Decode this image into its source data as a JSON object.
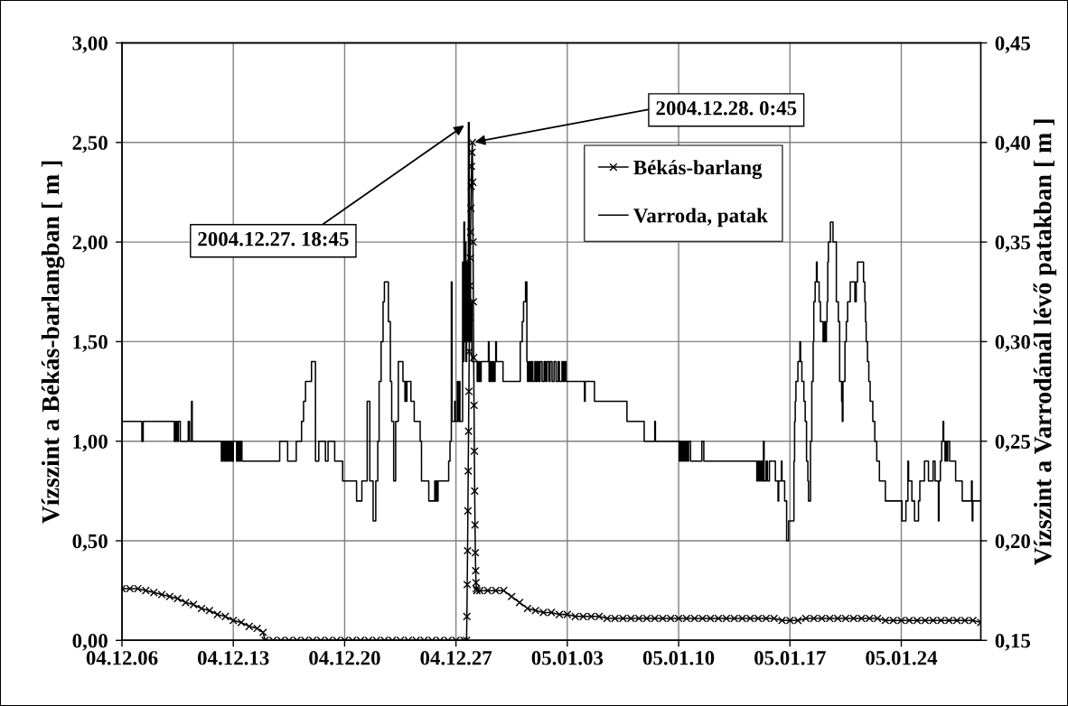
{
  "chart_data": {
    "type": "line",
    "ylabel": "Vízszint a Békás-barlangban [ m ]",
    "y2label": "Vízszint a Varrodánál lévő patakban [ m ]",
    "xlim": [
      "2004-12-06",
      "2005-01-29"
    ],
    "xticks": [
      {
        "value": "2004-12-06",
        "label": "04.12.06"
      },
      {
        "value": "2004-12-13",
        "label": "04.12.13"
      },
      {
        "value": "2004-12-20",
        "label": "04.12.20"
      },
      {
        "value": "2004-12-27",
        "label": "04.12.27"
      },
      {
        "value": "2005-01-03",
        "label": "05.01.03"
      },
      {
        "value": "2005-01-10",
        "label": "05.01.10"
      },
      {
        "value": "2005-01-17",
        "label": "05.01.17"
      },
      {
        "value": "2005-01-24",
        "label": "05.01.24"
      }
    ],
    "ylim": [
      0,
      3
    ],
    "yticks": [
      {
        "value": 0,
        "label": "0,00"
      },
      {
        "value": 0.5,
        "label": "0,50"
      },
      {
        "value": 1,
        "label": "1,00"
      },
      {
        "value": 1.5,
        "label": "1,50"
      },
      {
        "value": 2,
        "label": "2,00"
      },
      {
        "value": 2.5,
        "label": "2,50"
      },
      {
        "value": 3,
        "label": "3,00"
      }
    ],
    "y2lim": [
      0.15,
      0.45
    ],
    "y2ticks": [
      {
        "value": 0.15,
        "label": "0,15"
      },
      {
        "value": 0.2,
        "label": "0,20"
      },
      {
        "value": 0.25,
        "label": "0,25"
      },
      {
        "value": 0.3,
        "label": "0,30"
      },
      {
        "value": 0.35,
        "label": "0,35"
      },
      {
        "value": 0.4,
        "label": "0,40"
      },
      {
        "value": 0.45,
        "label": "0,45"
      }
    ],
    "grid": true,
    "legend": "top",
    "annotations": [
      {
        "text": "2004.12.27. 18:45",
        "x": "2004-12-27T18:45",
        "y": 2.6
      },
      {
        "text": "2004.12.28. 0:45",
        "x": "2004-12-28T00:45",
        "y": 2.5
      }
    ],
    "series": [
      {
        "name": "Békás-barlang",
        "color": "#000000",
        "marker": "cross",
        "x": [
          "2004-12-06T00:00",
          "2004-12-06T12:00",
          "2004-12-07T00:00",
          "2004-12-07T12:00",
          "2004-12-08T00:00",
          "2004-12-08T12:00",
          "2004-12-09T00:00",
          "2004-12-09T12:00",
          "2004-12-10T00:00",
          "2004-12-10T12:00",
          "2004-12-11T00:00",
          "2004-12-11T12:00",
          "2004-12-12T00:00",
          "2004-12-12T12:00",
          "2004-12-13T00:00",
          "2004-12-13T12:00",
          "2004-12-14T00:00",
          "2004-12-14T12:00",
          "2004-12-14T21:00",
          "2004-12-15T00:00",
          "2004-12-15T12:00",
          "2004-12-16T00:00",
          "2004-12-16T12:00",
          "2004-12-17T00:00",
          "2004-12-17T12:00",
          "2004-12-18T00:00",
          "2004-12-18T12:00",
          "2004-12-19T00:00",
          "2004-12-19T12:00",
          "2004-12-20T00:00",
          "2004-12-20T12:00",
          "2004-12-21T00:00",
          "2004-12-21T12:00",
          "2004-12-22T00:00",
          "2004-12-22T12:00",
          "2004-12-23T00:00",
          "2004-12-23T12:00",
          "2004-12-24T00:00",
          "2004-12-24T12:00",
          "2004-12-25T00:00",
          "2004-12-25T12:00",
          "2004-12-26T00:00",
          "2004-12-26T12:00",
          "2004-12-27T00:00",
          "2004-12-27T12:00",
          "2004-12-27T16:00",
          "2004-12-27T16:30",
          "2004-12-27T17:00",
          "2004-12-27T17:30",
          "2004-12-27T18:00",
          "2004-12-27T18:30",
          "2004-12-27T19:00",
          "2004-12-27T19:30",
          "2004-12-27T20:00",
          "2004-12-27T20:30",
          "2004-12-27T21:00",
          "2004-12-27T21:30",
          "2004-12-27T22:00",
          "2004-12-27T22:30",
          "2004-12-27T23:00",
          "2004-12-27T23:30",
          "2004-12-28T00:00",
          "2004-12-28T00:45",
          "2004-12-28T01:15",
          "2004-12-28T01:45",
          "2004-12-28T02:15",
          "2004-12-28T02:45",
          "2004-12-28T03:15",
          "2004-12-28T03:45",
          "2004-12-28T04:15",
          "2004-12-28T04:45",
          "2004-12-28T05:15",
          "2004-12-28T05:45",
          "2004-12-28T06:15",
          "2004-12-28T06:45",
          "2004-12-28T07:30",
          "2004-12-28T12:00",
          "2004-12-29T00:00",
          "2004-12-29T12:00",
          "2004-12-30T00:00",
          "2004-12-30T12:00",
          "2004-12-31T00:00",
          "2004-12-31T12:00",
          "2005-01-01T00:00",
          "2005-01-01T12:00",
          "2005-01-02T00:00",
          "2005-01-02T12:00",
          "2005-01-03T00:00",
          "2005-01-03T12:00",
          "2005-01-04T00:00",
          "2005-01-04T12:00",
          "2005-01-05T00:00",
          "2005-01-05T12:00",
          "2005-01-06T00:00",
          "2005-01-06T12:00",
          "2005-01-07T00:00",
          "2005-01-07T12:00",
          "2005-01-08T00:00",
          "2005-01-08T12:00",
          "2005-01-09T00:00",
          "2005-01-09T12:00",
          "2005-01-10T00:00",
          "2005-01-10T12:00",
          "2005-01-11T00:00",
          "2005-01-11T12:00",
          "2005-01-12T00:00",
          "2005-01-12T12:00",
          "2005-01-13T00:00",
          "2005-01-13T12:00",
          "2005-01-14T00:00",
          "2005-01-14T12:00",
          "2005-01-15T00:00",
          "2005-01-15T12:00",
          "2005-01-16T00:00",
          "2005-01-16T12:00",
          "2005-01-17T00:00",
          "2005-01-17T12:00",
          "2005-01-18T00:00",
          "2005-01-18T12:00",
          "2005-01-19T00:00",
          "2005-01-19T12:00",
          "2005-01-20T00:00",
          "2005-01-20T12:00",
          "2005-01-21T00:00",
          "2005-01-21T12:00",
          "2005-01-22T00:00",
          "2005-01-22T12:00",
          "2005-01-23T00:00",
          "2005-01-23T12:00",
          "2005-01-24T00:00",
          "2005-01-24T12:00",
          "2005-01-25T00:00",
          "2005-01-25T12:00",
          "2005-01-26T00:00",
          "2005-01-26T12:00",
          "2005-01-27T00:00",
          "2005-01-27T12:00",
          "2005-01-28T00:00",
          "2005-01-28T12:00",
          "2005-01-29T00:00"
        ],
        "values": [
          0.26,
          0.26,
          0.26,
          0.25,
          0.24,
          0.23,
          0.22,
          0.21,
          0.19,
          0.18,
          0.16,
          0.15,
          0.13,
          0.12,
          0.1,
          0.09,
          0.07,
          0.06,
          0.04,
          0,
          0,
          0,
          0,
          0,
          0,
          0,
          0,
          0,
          0,
          0,
          0,
          0,
          0,
          0,
          0,
          0,
          0,
          0,
          0,
          0,
          0,
          0,
          0,
          0,
          0,
          0,
          0.12,
          0.28,
          0.45,
          0.65,
          0.85,
          1.05,
          1.25,
          1.45,
          1.62,
          1.78,
          1.92,
          2.05,
          2.17,
          2.28,
          2.38,
          2.45,
          2.5,
          2.3,
          2.0,
          1.7,
          1.42,
          1.18,
          0.95,
          0.75,
          0.58,
          0.44,
          0.35,
          0.29,
          0.26,
          0.25,
          0.25,
          0.25,
          0.25,
          0.25,
          0.22,
          0.19,
          0.16,
          0.15,
          0.14,
          0.14,
          0.13,
          0.13,
          0.12,
          0.12,
          0.12,
          0.12,
          0.11,
          0.11,
          0.11,
          0.11,
          0.11,
          0.11,
          0.11,
          0.11,
          0.11,
          0.11,
          0.11,
          0.11,
          0.11,
          0.11,
          0.11,
          0.11,
          0.11,
          0.11,
          0.11,
          0.11,
          0.11,
          0.11,
          0.1,
          0.1,
          0.1,
          0.11,
          0.11,
          0.11,
          0.11,
          0.11,
          0.11,
          0.11,
          0.11,
          0.11,
          0.11,
          0.1,
          0.1,
          0.1,
          0.1,
          0.1,
          0.1,
          0.1,
          0.1,
          0.1,
          0.1,
          0.1,
          0.1,
          0.09
        ]
      },
      {
        "name": "Varroda, patak",
        "color": "#000000",
        "type": "step",
        "axis": "y2",
        "x": [
          "2004-12-06T00:00",
          "2004-12-07T06:00",
          "2004-12-07T08:00",
          "2004-12-09T07:00",
          "2004-12-09T09:00",
          "2004-12-09T11:00",
          "2004-12-09T13:00",
          "2004-12-09T16:00",
          "2004-12-10T04:00",
          "2004-12-10T06:00",
          "2004-12-10T09:00",
          "2004-12-10T10:00",
          "2004-12-12T06:00",
          "2004-12-12T08:00",
          "2004-12-12T10:00",
          "2004-12-12T12:00",
          "2004-12-12T14:00",
          "2004-12-12T16:00",
          "2004-12-12T18:00",
          "2004-12-12T20:00",
          "2004-12-12T22:00",
          "2004-12-13T00:00",
          "2004-12-13T05:00",
          "2004-12-13T07:00",
          "2004-12-13T09:00",
          "2004-12-13T11:00",
          "2004-12-13T13:00",
          "2004-12-15T22:00",
          "2004-12-16T10:00",
          "2004-12-16T23:00",
          "2004-12-17T07:00",
          "2004-12-17T10:00",
          "2004-12-17T13:00",
          "2004-12-17T22:00",
          "2004-12-18T04:00",
          "2004-12-18T09:00",
          "2004-12-18T19:00",
          "2004-12-18T23:00",
          "2004-12-19T09:00",
          "2004-12-19T21:00",
          "2004-12-20T18:00",
          "2004-12-21T02:00",
          "2004-12-21T10:00",
          "2004-12-21T14:00",
          "2004-12-21T19:00",
          "2004-12-21T23:00",
          "2004-12-22T02:00",
          "2004-12-22T04:00",
          "2004-12-22T07:00",
          "2004-12-22T10:00",
          "2004-12-22T12:00",
          "2004-12-22T18:00",
          "2004-12-22T21:00",
          "2004-12-22T23:00",
          "2004-12-23T02:00",
          "2004-12-23T05:00",
          "2004-12-23T09:00",
          "2004-12-23T16:00",
          "2004-12-23T19:00",
          "2004-12-23T20:00",
          "2004-12-23T21:00",
          "2004-12-23T22:00",
          "2004-12-24T04:00",
          "2004-12-24T09:00",
          "2004-12-24T18:00",
          "2004-12-24T20:00",
          "2004-12-25T07:00",
          "2004-12-25T16:00",
          "2004-12-25T17:00",
          "2004-12-25T18:00",
          "2004-12-25T19:00",
          "2004-12-25T21:00",
          "2004-12-26T13:00",
          "2004-12-26T15:00",
          "2004-12-26T17:00",
          "2004-12-26T18:00",
          "2004-12-26T22:00",
          "2004-12-26T23:00",
          "2004-12-27T02:00",
          "2004-12-27T03:00",
          "2004-12-27T05:00",
          "2004-12-27T06:00",
          "2004-12-27T10:00",
          "2004-12-27T11:00",
          "2004-12-27T12:00",
          "2004-12-27T13:00",
          "2004-12-27T14:00",
          "2004-12-27T15:00",
          "2004-12-27T16:00",
          "2004-12-27T17:00",
          "2004-12-27T18:45",
          "2004-12-27T20:00",
          "2004-12-27T21:00",
          "2004-12-27T22:00",
          "2004-12-27T23:00",
          "2004-12-28T00:00",
          "2004-12-28T08:00",
          "2004-12-28T09:00",
          "2004-12-28T10:00",
          "2004-12-28T11:00",
          "2004-12-28T12:00",
          "2004-12-28T14:00",
          "2004-12-29T01:00",
          "2004-12-29T02:00",
          "2004-12-29T04:00",
          "2004-12-29T05:00",
          "2004-12-29T07:00",
          "2004-12-29T09:00",
          "2004-12-29T11:00",
          "2004-12-29T12:00",
          "2004-12-29T13:00",
          "2004-12-29T23:00",
          "2004-12-31T01:00",
          "2004-12-31T04:00",
          "2004-12-31T06:00",
          "2004-12-31T09:00",
          "2004-12-31T11:00",
          "2004-12-31T12:00",
          "2004-12-31T14:00",
          "2004-12-31T16:00",
          "2004-12-31T18:00",
          "2004-12-31T20:00",
          "2004-12-31T23:00",
          "2005-01-01T01:00",
          "2005-01-01T03:00",
          "2005-01-01T05:00",
          "2005-01-01T07:00",
          "2005-01-01T10:00",
          "2005-01-01T13:00",
          "2005-01-01T15:00",
          "2005-01-01T17:00",
          "2005-01-01T20:00",
          "2005-01-01T22:00",
          "2005-01-02T01:00",
          "2005-01-02T04:00",
          "2005-01-02T07:00",
          "2005-01-02T10:00",
          "2005-01-02T12:00",
          "2005-01-02T16:00",
          "2005-01-02T18:00",
          "2005-01-02T20:00",
          "2005-01-02T22:00",
          "2005-01-04T02:00",
          "2005-01-04T03:00",
          "2005-01-04T17:00",
          "2005-01-06T18:00",
          "2005-01-07T20:00",
          "2005-01-08T12:00",
          "2005-01-08T13:00",
          "2005-01-10T01:00",
          "2005-01-10T03:00",
          "2005-01-10T05:00",
          "2005-01-10T07:00",
          "2005-01-10T09:00",
          "2005-01-10T11:00",
          "2005-01-10T13:00",
          "2005-01-10T15:00",
          "2005-01-10T18:00",
          "2005-01-11T11:00",
          "2005-01-11T14:00",
          "2005-01-14T22:00",
          "2005-01-15T00:00",
          "2005-01-15T02:00",
          "2005-01-15T04:00",
          "2005-01-15T06:00",
          "2005-01-15T08:00",
          "2005-01-15T09:00",
          "2005-01-15T12:00",
          "2005-01-15T14:00",
          "2005-01-15T17:00",
          "2005-01-16T02:00",
          "2005-01-16T06:00",
          "2005-01-16T07:00",
          "2005-01-16T11:00",
          "2005-01-16T12:00",
          "2005-01-16T16:00",
          "2005-01-16T19:00",
          "2005-01-16T22:00",
          "2005-01-17T06:00",
          "2005-01-17T07:00",
          "2005-01-17T08:00",
          "2005-01-17T09:00",
          "2005-01-17T12:00",
          "2005-01-17T15:00",
          "2005-01-17T16:00",
          "2005-01-17T18:00",
          "2005-01-17T21:00",
          "2005-01-17T23:00",
          "2005-01-18T01:00",
          "2005-01-18T03:00",
          "2005-01-18T04:00",
          "2005-01-18T07:00",
          "2005-01-18T09:00",
          "2005-01-18T11:00",
          "2005-01-18T12:00",
          "2005-01-18T14:00",
          "2005-01-18T16:00",
          "2005-01-18T17:00",
          "2005-01-18T20:00",
          "2005-01-18T22:00",
          "2005-01-19T02:00",
          "2005-01-19T04:00",
          "2005-01-19T05:00",
          "2005-01-19T07:00",
          "2005-01-19T08:00",
          "2005-01-19T09:00",
          "2005-01-19T10:00",
          "2005-01-19T13:00",
          "2005-01-19T17:00",
          "2005-01-19T22:00",
          "2005-01-20T01:00",
          "2005-01-20T03:00",
          "2005-01-20T06:00",
          "2005-01-20T07:00",
          "2005-01-20T08:00",
          "2005-01-20T11:00",
          "2005-01-20T13:00",
          "2005-01-20T15:00",
          "2005-01-20T19:00",
          "2005-01-21T02:00",
          "2005-01-21T04:00",
          "2005-01-21T06:00",
          "2005-01-21T15:00",
          "2005-01-21T17:00",
          "2005-01-21T18:00",
          "2005-01-21T19:00",
          "2005-01-21T21:00",
          "2005-01-21T23:00",
          "2005-01-22T01:00",
          "2005-01-22T05:00",
          "2005-01-22T08:00",
          "2005-01-22T11:00",
          "2005-01-22T15:00",
          "2005-01-23T00:00",
          "2005-01-24T01:00",
          "2005-01-24T07:00",
          "2005-01-24T10:00",
          "2005-01-24T11:00",
          "2005-01-24T16:00",
          "2005-01-24T20:00",
          "2005-01-25T02:00",
          "2005-01-25T04:00",
          "2005-01-25T11:00",
          "2005-01-25T17:00",
          "2005-01-26T00:00",
          "2005-01-26T03:00",
          "2005-01-26T08:00",
          "2005-01-26T09:00",
          "2005-01-26T11:00",
          "2005-01-26T13:00",
          "2005-01-26T15:00",
          "2005-01-26T16:00",
          "2005-01-26T18:00",
          "2005-01-26T19:00",
          "2005-01-26T21:00",
          "2005-01-26T22:00",
          "2005-01-27T01:00",
          "2005-01-27T10:00",
          "2005-01-27T20:00",
          "2005-01-28T10:00",
          "2005-01-28T11:00",
          "2005-01-28T12:00",
          "2005-01-29T00:00"
        ],
        "values": [
          0.26,
          0.25,
          0.26,
          0.25,
          0.26,
          0.25,
          0.26,
          0.25,
          0.26,
          0.25,
          0.27,
          0.25,
          0.24,
          0.25,
          0.24,
          0.25,
          0.24,
          0.25,
          0.24,
          0.25,
          0.24,
          0.25,
          0.24,
          0.25,
          0.24,
          0.25,
          0.24,
          0.25,
          0.24,
          0.25,
          0.26,
          0.27,
          0.28,
          0.29,
          0.24,
          0.25,
          0.24,
          0.25,
          0.24,
          0.23,
          0.22,
          0.23,
          0.27,
          0.23,
          0.21,
          0.23,
          0.25,
          0.28,
          0.3,
          0.32,
          0.33,
          0.31,
          0.28,
          0.26,
          0.23,
          0.26,
          0.29,
          0.28,
          0.27,
          0.28,
          0.27,
          0.28,
          0.27,
          0.26,
          0.25,
          0.23,
          0.22,
          0.23,
          0.22,
          0.23,
          0.22,
          0.23,
          0.24,
          0.25,
          0.33,
          0.26,
          0.27,
          0.26,
          0.28,
          0.26,
          0.28,
          0.26,
          0.34,
          0.29,
          0.36,
          0.3,
          0.35,
          0.29,
          0.34,
          0.3,
          0.41,
          0.3,
          0.34,
          0.3,
          0.32,
          0.29,
          0.28,
          0.29,
          0.28,
          0.29,
          0.28,
          0.29,
          0.3,
          0.28,
          0.29,
          0.28,
          0.29,
          0.28,
          0.29,
          0.3,
          0.29,
          0.28,
          0.3,
          0.31,
          0.32,
          0.33,
          0.29,
          0.28,
          0.29,
          0.28,
          0.29,
          0.28,
          0.29,
          0.28,
          0.29,
          0.28,
          0.29,
          0.28,
          0.29,
          0.28,
          0.29,
          0.28,
          0.29,
          0.28,
          0.29,
          0.28,
          0.29,
          0.28,
          0.29,
          0.28,
          0.29,
          0.28,
          0.27,
          0.28,
          0.27,
          0.26,
          0.25,
          0.26,
          0.25,
          0.24,
          0.25,
          0.24,
          0.25,
          0.24,
          0.25,
          0.24,
          0.25,
          0.24,
          0.25,
          0.24,
          0.23,
          0.24,
          0.23,
          0.24,
          0.23,
          0.25,
          0.23,
          0.24,
          0.23,
          0.24,
          0.23,
          0.22,
          0.23,
          0.24,
          0.23,
          0.22,
          0.2,
          0.21,
          0.24,
          0.26,
          0.27,
          0.28,
          0.29,
          0.3,
          0.29,
          0.28,
          0.27,
          0.26,
          0.24,
          0.23,
          0.22,
          0.25,
          0.28,
          0.3,
          0.32,
          0.33,
          0.34,
          0.33,
          0.32,
          0.31,
          0.3,
          0.31,
          0.3,
          0.31,
          0.32,
          0.34,
          0.35,
          0.36,
          0.35,
          0.32,
          0.31,
          0.28,
          0.27,
          0.26,
          0.28,
          0.3,
          0.31,
          0.32,
          0.33,
          0.32,
          0.33,
          0.34,
          0.33,
          0.32,
          0.31,
          0.3,
          0.29,
          0.28,
          0.27,
          0.26,
          0.25,
          0.24,
          0.23,
          0.22,
          0.21,
          0.22,
          0.24,
          0.23,
          0.22,
          0.21,
          0.22,
          0.23,
          0.24,
          0.23,
          0.24,
          0.23,
          0.21,
          0.23,
          0.24,
          0.25,
          0.26,
          0.25,
          0.24,
          0.25,
          0.24,
          0.25,
          0.24,
          0.23,
          0.22,
          0.23,
          0.21,
          0.22,
          0.22
        ]
      }
    ]
  }
}
